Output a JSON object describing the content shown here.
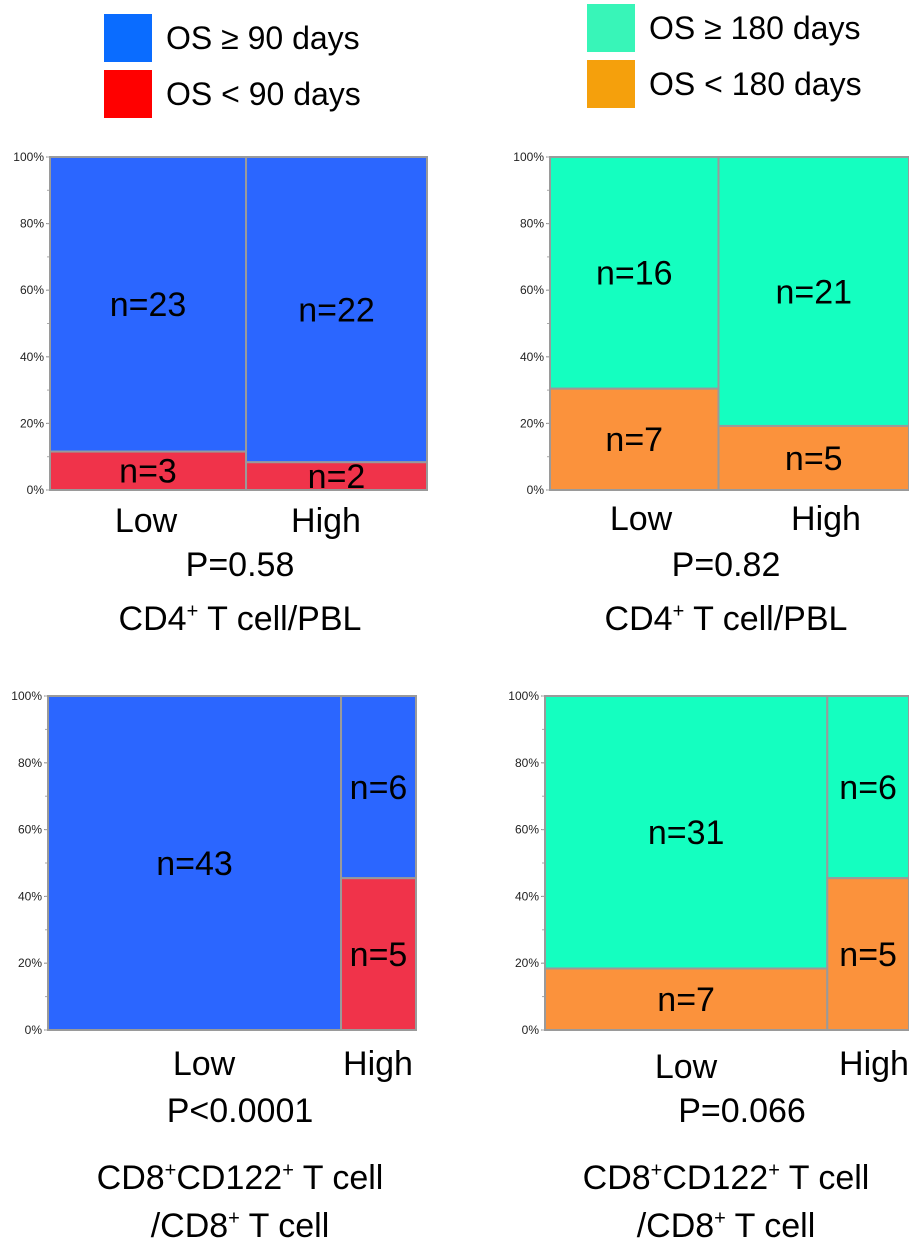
{
  "legend_left": {
    "items": [
      {
        "label": "OS ≥ 90 days",
        "color": "#0a6cff"
      },
      {
        "label": "OS < 90 days",
        "color": "#ff0000"
      }
    ]
  },
  "legend_right": {
    "items": [
      {
        "label": "OS ≥ 180 days",
        "color": "#38f5b8"
      },
      {
        "label": "OS < 180 days",
        "color": "#f5a00c"
      }
    ]
  },
  "chart_data": [
    {
      "type": "mosaic",
      "categories": [
        "Low",
        "High"
      ],
      "column_counts": [
        26,
        24
      ],
      "series": [
        {
          "label": "OS ≥ 90 days",
          "counts": [
            23,
            22
          ],
          "color": "#2b66ff"
        },
        {
          "label": "OS < 90 days",
          "counts": [
            3,
            2
          ],
          "color": "#f0334a"
        }
      ],
      "ylim": [
        0,
        100
      ],
      "yticks": [
        "0%",
        "20%",
        "40%",
        "60%",
        "80%",
        "100%"
      ],
      "pvalue": "P=0.58",
      "caption": [
        "CD4",
        "+",
        " T cell/PBL"
      ]
    },
    {
      "type": "mosaic",
      "categories": [
        "Low",
        "High"
      ],
      "column_counts": [
        23,
        26
      ],
      "series": [
        {
          "label": "OS ≥ 180 days",
          "counts": [
            16,
            21
          ],
          "color": "#14ffc0"
        },
        {
          "label": "OS < 180 days",
          "counts": [
            7,
            5
          ],
          "color": "#fb923c"
        }
      ],
      "ylim": [
        0,
        100
      ],
      "yticks": [
        "0%",
        "20%",
        "40%",
        "60%",
        "80%",
        "100%"
      ],
      "pvalue": "P=0.82",
      "caption": [
        "CD4",
        "+",
        " T cell/PBL"
      ]
    },
    {
      "type": "mosaic",
      "categories": [
        "Low",
        "High"
      ],
      "column_counts": [
        43,
        11
      ],
      "series": [
        {
          "label": "OS ≥ 90 days",
          "counts": [
            43,
            6
          ],
          "color": "#2b66ff"
        },
        {
          "label": "OS < 90 days",
          "counts": [
            0,
            5
          ],
          "color": "#f0334a"
        }
      ],
      "ylim": [
        0,
        100
      ],
      "yticks": [
        "0%",
        "20%",
        "40%",
        "60%",
        "80%",
        "100%"
      ],
      "pvalue": "P<0.0001",
      "caption": [
        "CD8",
        "+",
        "CD122",
        "+",
        " T cell",
        "/CD8",
        "+",
        " T cell"
      ]
    },
    {
      "type": "mosaic",
      "categories": [
        "Low",
        "High"
      ],
      "column_counts": [
        38,
        11
      ],
      "series": [
        {
          "label": "OS ≥ 180 days",
          "counts": [
            31,
            6
          ],
          "color": "#14ffc0"
        },
        {
          "label": "OS < 180 days",
          "counts": [
            7,
            5
          ],
          "color": "#fb923c"
        }
      ],
      "ylim": [
        0,
        100
      ],
      "yticks": [
        "0%",
        "20%",
        "40%",
        "60%",
        "80%",
        "100%"
      ],
      "pvalue": "P=0.066",
      "caption": [
        "CD8",
        "+",
        "CD122",
        "+",
        " T cell",
        "/CD8",
        "+",
        " T cell"
      ]
    }
  ]
}
